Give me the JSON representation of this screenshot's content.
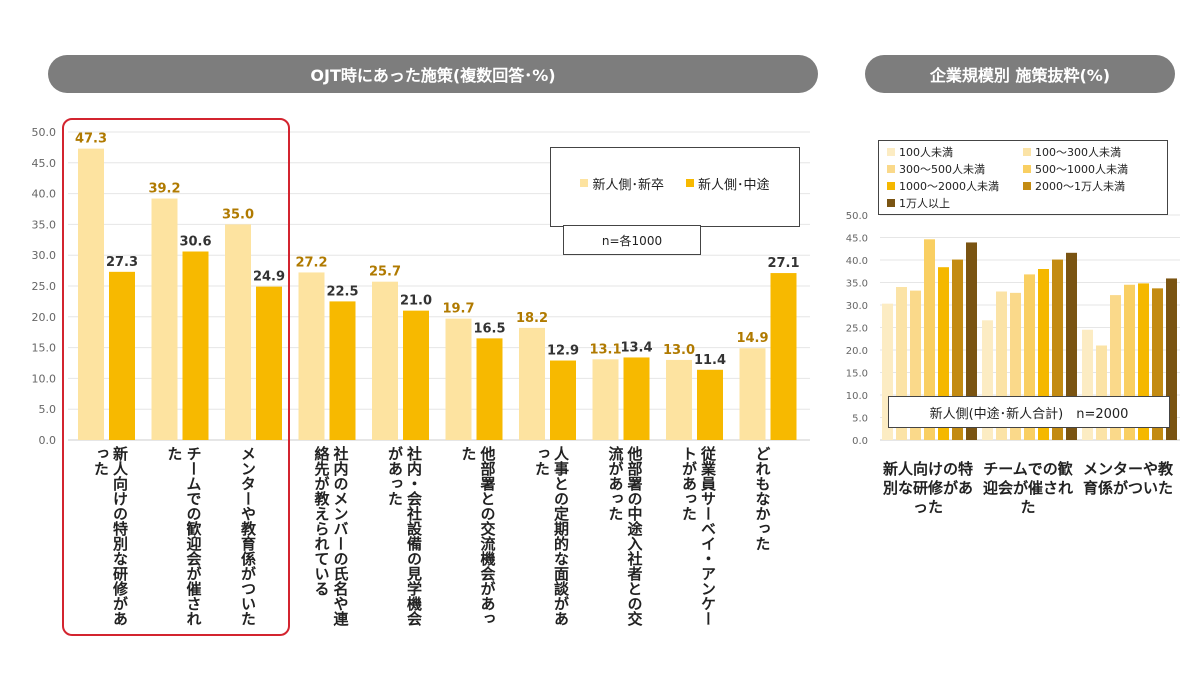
{
  "chart_data": [
    {
      "type": "bar",
      "title": "OJT時にあった施策(複数回答･%)",
      "ylim": [
        0,
        50
      ],
      "yticks": [
        "0.0",
        "5.0",
        "10.0",
        "15.0",
        "20.0",
        "25.0",
        "30.0",
        "35.0",
        "40.0",
        "45.0",
        "50.0"
      ],
      "grid": true,
      "legend_placement": "top-right",
      "note": "n=各1000",
      "categories": [
        "新人向けの特別な研修があった",
        "チームでの歓迎会が催された",
        "メンターや教育係がついた",
        "社内のメンバーの氏名や連絡先が教えられている",
        "社内・会社設備の見学機会があった",
        "他部署との交流機会があった",
        "人事との定期的な面談があった",
        "他部署の中途入社者との交流があった",
        "従業員サーベイ・アンケートがあった",
        "どれもなかった"
      ],
      "series": [
        {
          "name": "新人側･新卒",
          "color": "#fde3a0",
          "values": [
            47.3,
            39.2,
            35.0,
            27.2,
            25.7,
            19.7,
            18.2,
            13.1,
            13.0,
            14.9
          ]
        },
        {
          "name": "新人側･中途",
          "color": "#f7b900",
          "values": [
            27.3,
            30.6,
            24.9,
            22.5,
            21.0,
            16.5,
            12.9,
            13.4,
            11.4,
            27.1
          ]
        }
      ],
      "highlighted_categories": [
        0,
        1,
        2
      ]
    },
    {
      "type": "bar",
      "title": "企業規模別 施策抜粋(%)",
      "ylim": [
        0,
        50
      ],
      "yticks": [
        "0.0",
        "5.0",
        "10.0",
        "15.0",
        "20.0",
        "25.0",
        "30.0",
        "35.0",
        "40.0",
        "45.0",
        "50.0"
      ],
      "grid": true,
      "legend_placement": "top",
      "note": "新人側(中途･新人合計)　n=2000",
      "categories": [
        "新人向けの特別な研修があった",
        "チームでの歓迎会が催された",
        "メンターや教育係がついた"
      ],
      "series": [
        {
          "name": "100人未満",
          "color": "#fcecc3",
          "values": [
            30.3,
            26.6,
            24.5
          ]
        },
        {
          "name": "100～300人未満",
          "color": "#fbe3a6",
          "values": [
            34.0,
            33.0,
            21.0
          ]
        },
        {
          "name": "300～500人未満",
          "color": "#fad98a",
          "values": [
            33.2,
            32.7,
            32.2
          ]
        },
        {
          "name": "500～1000人未満",
          "color": "#f9cf62",
          "values": [
            44.6,
            36.8,
            34.5
          ]
        },
        {
          "name": "1000～2000人未満",
          "color": "#f5b800",
          "values": [
            38.4,
            38.0,
            34.8
          ]
        },
        {
          "name": "2000～1万人未満",
          "color": "#c38b12",
          "values": [
            40.1,
            40.1,
            33.7
          ]
        },
        {
          "name": "1万人以上",
          "color": "#7a5412",
          "values": [
            43.9,
            41.6,
            35.9
          ]
        }
      ]
    }
  ]
}
